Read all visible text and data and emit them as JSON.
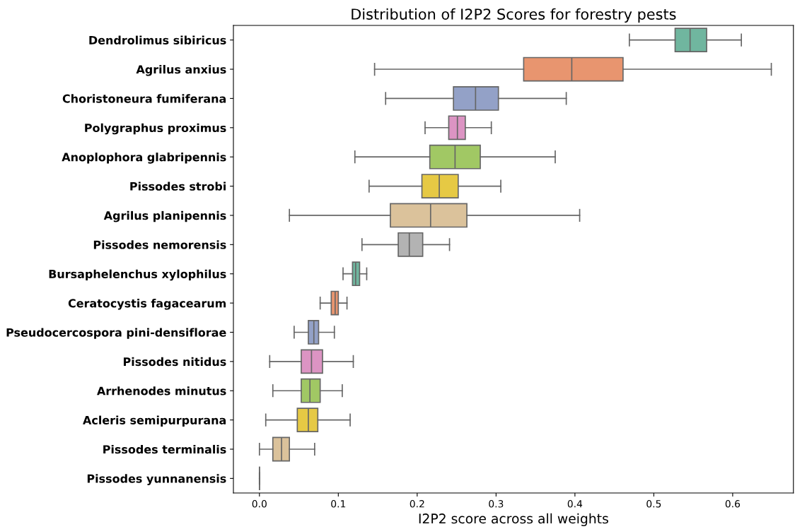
{
  "chart_data": {
    "type": "box",
    "orientation": "horizontal",
    "title": "Distribution of I2P2 Scores for forestry pests",
    "xlabel": "I2P2 score across all weights",
    "categories": [
      "Dendrolimus sibiricus",
      "Agrilus anxius",
      "Choristoneura fumiferana",
      "Polygraphus proximus",
      "Anoplophora glabripennis",
      "Pissodes strobi",
      "Agrilus planipennis",
      "Pissodes nemorensis",
      "Bursaphelenchus xylophilus",
      "Ceratocystis fagacearum",
      "Pseudocercospora pini-densiflorae",
      "Pissodes nitidus",
      "Arrhenodes minutus",
      "Acleris semipurpurana",
      "Pissodes terminalis",
      "Pissodes yunnanensis"
    ],
    "boxes": [
      {
        "low": 0.469,
        "q1": 0.527,
        "median": 0.546,
        "q3": 0.567,
        "high": 0.611
      },
      {
        "low": 0.146,
        "q1": 0.335,
        "median": 0.396,
        "q3": 0.461,
        "high": 0.649
      },
      {
        "low": 0.16,
        "q1": 0.246,
        "median": 0.274,
        "q3": 0.303,
        "high": 0.389
      },
      {
        "low": 0.21,
        "q1": 0.24,
        "median": 0.251,
        "q3": 0.261,
        "high": 0.294
      },
      {
        "low": 0.121,
        "q1": 0.216,
        "median": 0.248,
        "q3": 0.28,
        "high": 0.375
      },
      {
        "low": 0.139,
        "q1": 0.206,
        "median": 0.228,
        "q3": 0.252,
        "high": 0.306
      },
      {
        "low": 0.038,
        "q1": 0.166,
        "median": 0.217,
        "q3": 0.263,
        "high": 0.406
      },
      {
        "low": 0.13,
        "q1": 0.176,
        "median": 0.19,
        "q3": 0.207,
        "high": 0.241
      },
      {
        "low": 0.106,
        "q1": 0.118,
        "median": 0.122,
        "q3": 0.127,
        "high": 0.136
      },
      {
        "low": 0.077,
        "q1": 0.091,
        "median": 0.096,
        "q3": 0.1,
        "high": 0.111
      },
      {
        "low": 0.044,
        "q1": 0.062,
        "median": 0.069,
        "q3": 0.075,
        "high": 0.095
      },
      {
        "low": 0.013,
        "q1": 0.053,
        "median": 0.066,
        "q3": 0.08,
        "high": 0.119
      },
      {
        "low": 0.017,
        "q1": 0.053,
        "median": 0.064,
        "q3": 0.077,
        "high": 0.105
      },
      {
        "low": 0.008,
        "q1": 0.048,
        "median": 0.062,
        "q3": 0.074,
        "high": 0.115
      },
      {
        "low": 0.0,
        "q1": 0.017,
        "median": 0.028,
        "q3": 0.038,
        "high": 0.07
      },
      {
        "low": 0.0,
        "q1": 0.0,
        "median": 0.0,
        "q3": 0.0,
        "high": 0.0
      }
    ],
    "colors": [
      "#70b69f",
      "#e8956f",
      "#93a1c7",
      "#dc94c3",
      "#a1c864",
      "#e6c944",
      "#dbc29b",
      "#b3b3b3",
      "#70b69f",
      "#e8956f",
      "#93a1c7",
      "#dc94c3",
      "#a1c864",
      "#e6c944",
      "#dbc29b",
      null
    ],
    "xlim": [
      -0.033,
      0.677
    ],
    "xticks": [
      {
        "value": 0.0,
        "label": "0.0"
      },
      0.1,
      0.2,
      0.3,
      0.4,
      0.5,
      0.6
    ],
    "grid": false,
    "legend": false
  }
}
